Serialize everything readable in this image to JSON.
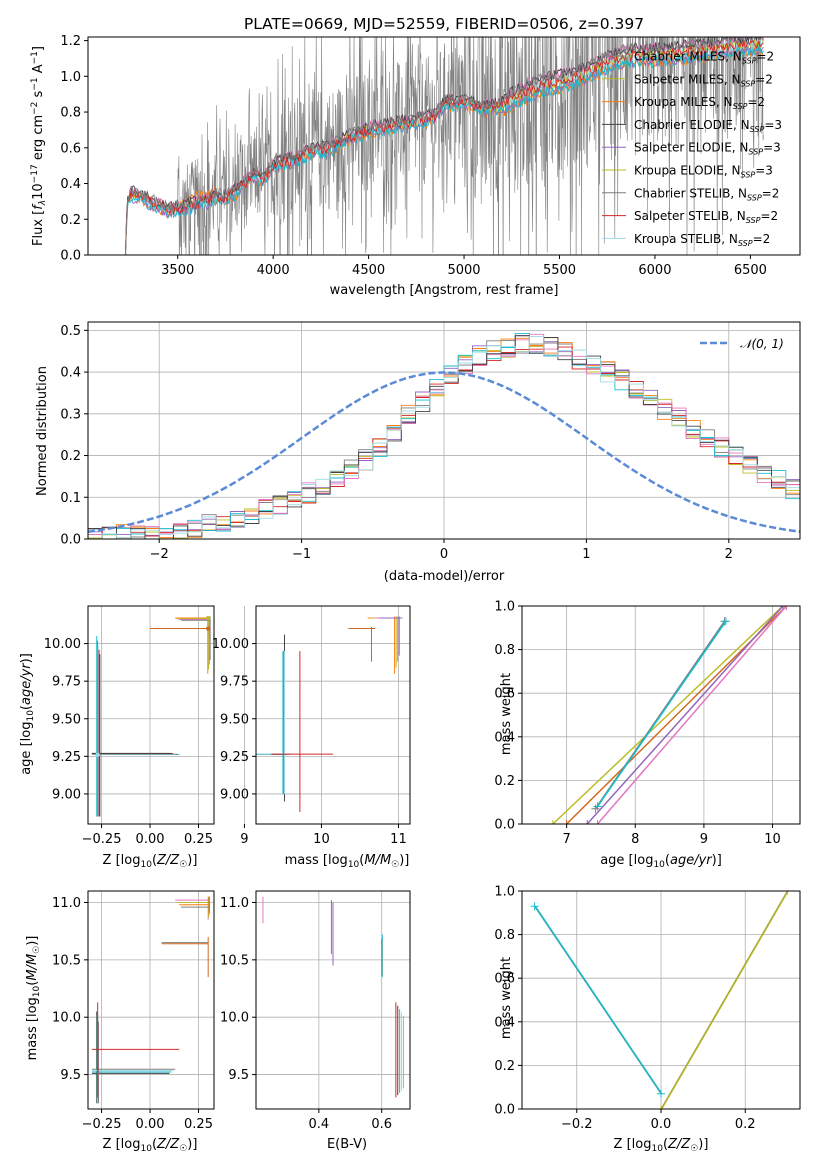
{
  "title": "PLATE=0669, MJD=52559, FIBERID=0506, z=0.397",
  "colors": {
    "gray": "#7f7f7f",
    "orange": "#ff7f0e",
    "darkorange": "#d2691e",
    "olive": "#bcbd22",
    "purple": "#9467bd",
    "darkmagenta": "#8b008b",
    "red": "#d62728",
    "cyan": "#17becf",
    "pink": "#e377c2",
    "lightblue": "#9edae5",
    "gaussian": "#5b8bd6",
    "darkgray": "#444444"
  },
  "legend_entries": [
    "Chabrier MILES, N_SSP=2",
    "Salpeter MILES, N_SSP=2",
    "Kroupa MILES, N_SSP=2",
    "Chabrier ELODIE, N_SSP=3",
    "Salpeter ELODIE, N_SSP=3",
    "Kroupa ELODIE, N_SSP=3",
    "Chabrier STELIB, N_SSP=2",
    "Salpeter STELIB, N_SSP=2",
    "Kroupa STELIB, N_SSP=2"
  ],
  "chart_data": [
    {
      "id": "spectrum",
      "type": "line",
      "title": "PLATE=0669, MJD=52559, FIBERID=0506, z=0.397",
      "xlabel": "wavelength [Angstrom, rest frame]",
      "ylabel": "Flux [fλ10⁻¹⁷ erg cm⁻² s⁻¹ A⁻¹]",
      "xlim": [
        3030,
        6760
      ],
      "ylim": [
        0,
        1.22
      ],
      "xticks": [
        3500,
        4000,
        4500,
        5000,
        5500,
        6000,
        6500
      ],
      "yticks": [
        0.0,
        0.2,
        0.4,
        0.6,
        0.8,
        1.0,
        1.2
      ],
      "legend": "upper right",
      "grid": false,
      "model_continuum": {
        "x": [
          3220,
          3240,
          3260,
          3300,
          3350,
          3400,
          3450,
          3500,
          3550,
          3600,
          3650,
          3700,
          3750,
          3800,
          3850,
          3900,
          3950,
          4000,
          4100,
          4200,
          4300,
          4400,
          4500,
          4600,
          4700,
          4800,
          4850,
          4900,
          5000,
          5100,
          5200,
          5300,
          5400,
          5500,
          5600,
          5700,
          5800,
          5900,
          6000,
          6100,
          6200,
          6300,
          6400,
          6500,
          6570
        ],
        "y": [
          0.0,
          0.32,
          0.34,
          0.33,
          0.3,
          0.28,
          0.25,
          0.26,
          0.27,
          0.29,
          0.3,
          0.33,
          0.32,
          0.35,
          0.4,
          0.45,
          0.43,
          0.5,
          0.53,
          0.58,
          0.6,
          0.66,
          0.7,
          0.72,
          0.74,
          0.76,
          0.78,
          0.85,
          0.86,
          0.82,
          0.84,
          0.9,
          0.95,
          0.97,
          1.0,
          1.05,
          1.1,
          1.12,
          1.12,
          1.13,
          1.14,
          1.15,
          1.17,
          1.18,
          1.19
        ]
      }
    },
    {
      "id": "residuals",
      "type": "line",
      "xlabel": "(data-model)/error",
      "ylabel": "Normed distribution",
      "xlim": [
        -2.5,
        2.5
      ],
      "ylim": [
        0,
        0.52
      ],
      "xticks": [
        -2,
        -1,
        0,
        1,
        2
      ],
      "yticks": [
        0.0,
        0.1,
        0.2,
        0.3,
        0.4,
        0.5
      ],
      "grid": true,
      "legend": "upper right",
      "gaussian_label": "𝒩(0, 1)",
      "gaussian": {
        "mu": 0,
        "sigma": 1
      },
      "histogram": {
        "bin_start": -2.5,
        "bin_width": 0.1,
        "heights": [
          0.005,
          0.008,
          0.01,
          0.012,
          0.015,
          0.018,
          0.022,
          0.028,
          0.035,
          0.042,
          0.05,
          0.06,
          0.07,
          0.082,
          0.095,
          0.11,
          0.13,
          0.15,
          0.17,
          0.19,
          0.22,
          0.26,
          0.3,
          0.33,
          0.36,
          0.39,
          0.42,
          0.44,
          0.45,
          0.46,
          0.47,
          0.47,
          0.46,
          0.45,
          0.43,
          0.42,
          0.4,
          0.38,
          0.36,
          0.34,
          0.31,
          0.29,
          0.26,
          0.24,
          0.22,
          0.2,
          0.18,
          0.16,
          0.14,
          0.12
        ]
      }
    },
    {
      "id": "age_vs_Z",
      "type": "scatter",
      "xlabel": "Z [log₁₀(Z/Z☉)]",
      "ylabel": "age [log₁₀(age/yr)]",
      "xlim": [
        -0.32,
        0.33
      ],
      "ylim": [
        8.8,
        10.25
      ],
      "xticks": [
        -0.25,
        0.0,
        0.25
      ],
      "xticklabels": [
        "−0.25",
        "0.00",
        "0.25"
      ],
      "yticks": [
        9.0,
        9.25,
        9.5,
        9.75,
        10.0
      ],
      "yticklabels": [
        "9.00",
        "9.25",
        "9.50",
        "9.75",
        "10.00"
      ],
      "grid": true,
      "points": [
        {
          "x": -0.27,
          "y": 9.26
        },
        {
          "x": 0.3,
          "y": 10.1
        },
        {
          "x": 0.3,
          "y": 10.17
        }
      ]
    },
    {
      "id": "age_vs_mass",
      "type": "scatter",
      "xlabel": "mass [log₁₀(M/M☉)]",
      "xlim": [
        9.15,
        11.15
      ],
      "ylim": [
        8.8,
        10.25
      ],
      "xticks": [
        9,
        10,
        11
      ],
      "yticks": [
        9.0,
        9.25,
        9.5,
        9.75,
        10.0
      ],
      "yticklabels": [
        "9.00",
        "9.25",
        "9.50",
        "9.75",
        "10.00"
      ],
      "grid": true,
      "points": [
        {
          "x": 9.52,
          "y": 9.26
        },
        {
          "x": 9.72,
          "y": 9.26
        },
        {
          "x": 10.65,
          "y": 10.1
        },
        {
          "x": 11.0,
          "y": 10.17
        }
      ]
    },
    {
      "id": "weight_vs_age",
      "type": "line",
      "xlabel": "age [log₁₀(age/yr)]",
      "ylabel": "mass weight",
      "xlim": [
        6.35,
        10.4
      ],
      "ylim": [
        0,
        1
      ],
      "xticks": [
        7,
        8,
        9,
        10
      ],
      "yticks": [
        0.0,
        0.2,
        0.4,
        0.6,
        0.8,
        1.0
      ],
      "grid": true,
      "series": [
        {
          "x": [
            6.8,
            10.15
          ],
          "y": [
            0.0,
            1.0
          ]
        },
        {
          "x": [
            7.0,
            10.2
          ],
          "y": [
            0.0,
            1.0
          ]
        },
        {
          "x": [
            7.3,
            10.15
          ],
          "y": [
            0.0,
            1.0
          ]
        },
        {
          "x": [
            7.45,
            10.2
          ],
          "y": [
            0.0,
            1.0
          ]
        },
        {
          "x": [
            7.42,
            9.3
          ],
          "y": [
            0.07,
            0.93
          ]
        },
        {
          "x": [
            7.45,
            9.32
          ],
          "y": [
            0.08,
            0.93
          ]
        }
      ]
    },
    {
      "id": "mass_vs_Z",
      "type": "scatter",
      "xlabel": "Z [log₁₀(Z/Z☉)]",
      "ylabel": "mass [log₁₀(M/M☉)]",
      "xlim": [
        -0.32,
        0.33
      ],
      "ylim": [
        9.2,
        11.1
      ],
      "xticks": [
        -0.25,
        0.0,
        0.25
      ],
      "xticklabels": [
        "−0.25",
        "0.00",
        "0.25"
      ],
      "yticks": [
        9.5,
        10.0,
        10.5,
        11.0
      ],
      "yticklabels": [
        "9.5",
        "10.0",
        "10.5",
        "11.0"
      ],
      "grid": true,
      "points": [
        {
          "x": -0.27,
          "y": 9.52
        },
        {
          "x": -0.27,
          "y": 9.72
        },
        {
          "x": 0.3,
          "y": 10.65
        },
        {
          "x": 0.3,
          "y": 11.0
        }
      ]
    },
    {
      "id": "mass_vs_EBV",
      "type": "scatter",
      "xlabel": "E(B-V)",
      "xlim": [
        0.2,
        0.69
      ],
      "ylim": [
        9.2,
        11.1
      ],
      "xticks": [
        0.4,
        0.6
      ],
      "xticklabels": [
        "0.4",
        "0.6"
      ],
      "yticks": [
        9.5,
        10.0,
        10.5,
        11.0
      ],
      "yticklabels": [
        "9.5",
        "10.0",
        "10.5",
        "11.0"
      ],
      "grid": true,
      "points": [
        {
          "x": 0.22,
          "y": 10.95
        },
        {
          "x": 0.44,
          "y": 10.7
        },
        {
          "x": 0.6,
          "y": 10.5
        },
        {
          "x": 0.65,
          "y": 9.7
        }
      ]
    },
    {
      "id": "weight_vs_Z",
      "type": "line",
      "xlabel": "Z [log₁₀(Z/Z☉)]",
      "ylabel": "mass weight",
      "xlim": [
        -0.33,
        0.33
      ],
      "ylim": [
        0,
        1
      ],
      "xticks": [
        -0.2,
        0.0,
        0.2
      ],
      "xticklabels": [
        "−0.2",
        "0.0",
        "0.2"
      ],
      "yticks": [
        0.0,
        0.2,
        0.4,
        0.6,
        0.8,
        1.0
      ],
      "grid": true,
      "series": [
        {
          "x": [
            -0.3,
            0.0
          ],
          "y": [
            0.93,
            0.07
          ]
        },
        {
          "x": [
            0.0,
            0.3
          ],
          "y": [
            0.0,
            1.0
          ]
        }
      ]
    }
  ]
}
